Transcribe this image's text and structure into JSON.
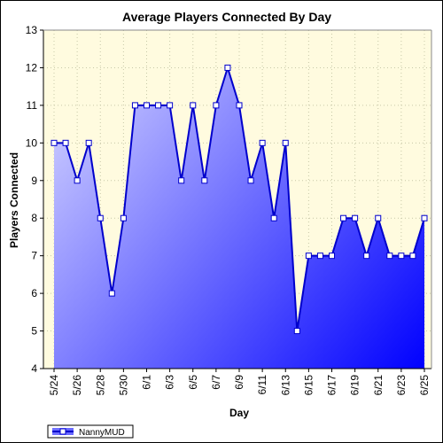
{
  "chart_data": {
    "type": "area",
    "title": "Average Players Connected By Day",
    "xlabel": "Day",
    "ylabel": "Players Connected",
    "ylim": [
      4,
      13
    ],
    "y_ticks": [
      "4",
      "5",
      "6",
      "7",
      "8",
      "9",
      "10",
      "11",
      "12",
      "13"
    ],
    "x": [
      "5/24",
      "5/25",
      "5/26",
      "5/27",
      "5/28",
      "5/29",
      "5/30",
      "5/31",
      "6/1",
      "6/2",
      "6/3",
      "6/4",
      "6/5",
      "6/6",
      "6/7",
      "6/8",
      "6/9",
      "6/10",
      "6/11",
      "6/12",
      "6/13",
      "6/14",
      "6/15",
      "6/16",
      "6/17",
      "6/18",
      "6/19",
      "6/20",
      "6/21",
      "6/22",
      "6/23",
      "6/24",
      "6/25"
    ],
    "x_tick_labels": [
      "5/24",
      "5/26",
      "5/28",
      "5/30",
      "6/1",
      "6/3",
      "6/5",
      "6/7",
      "6/9",
      "6/11",
      "6/13",
      "6/15",
      "6/17",
      "6/19",
      "6/21",
      "6/23",
      "6/25"
    ],
    "series": [
      {
        "name": "NannyMUD",
        "values": [
          10,
          10,
          9,
          10,
          8,
          6,
          8,
          11,
          11,
          11,
          11,
          9,
          11,
          9,
          11,
          12,
          11,
          9,
          10,
          8,
          10,
          5,
          7,
          7,
          7,
          8,
          8,
          7,
          8,
          7,
          7,
          7,
          8
        ]
      }
    ],
    "grid": true,
    "legend_position": "bottom-left",
    "colors": {
      "plot_background": "#FFFBDF",
      "line": "#0000CC",
      "fill_light": "#D8D8FF",
      "fill_dark": "#0000FF",
      "grid": "#C8C8A8"
    }
  }
}
